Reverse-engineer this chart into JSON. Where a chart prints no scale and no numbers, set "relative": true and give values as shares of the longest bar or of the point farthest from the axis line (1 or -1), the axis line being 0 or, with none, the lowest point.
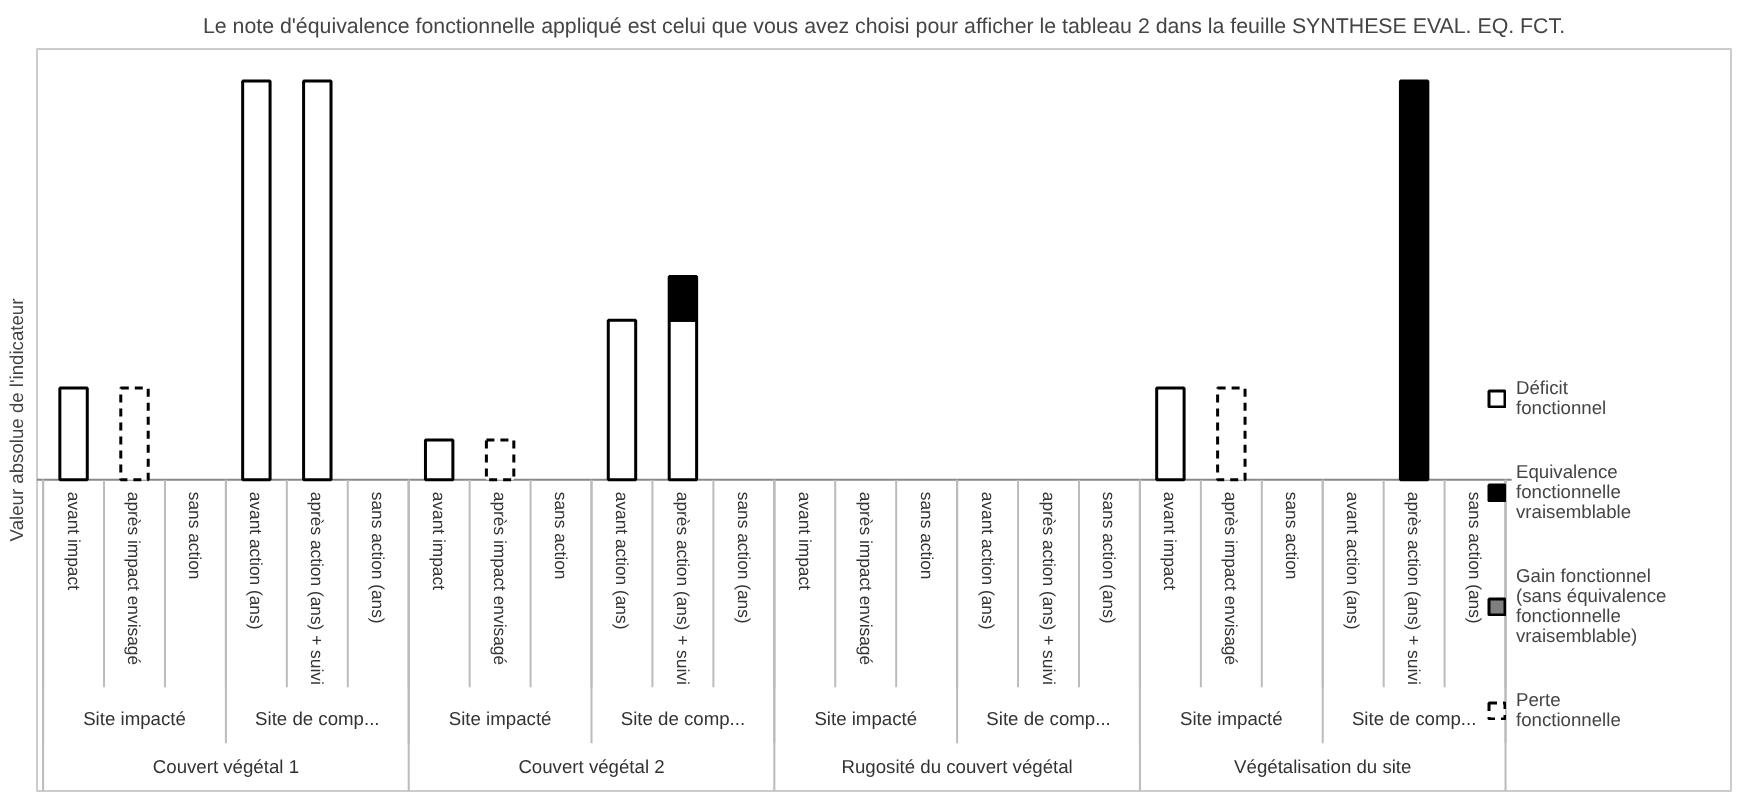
{
  "chart_data": {
    "type": "bar",
    "title": "Le note d'équivalence fonctionnelle appliqué est celui que vous avez choisi pour afficher le tableau 2 dans la feuille SYNTHESE EVAL. EQ. FCT.",
    "ylabel": "Valeur absolue de l'indicateur",
    "relative": true,
    "stacked": true,
    "legend": "right",
    "grid": false,
    "categories": [
      "avant impact",
      "après impact envisagé",
      "sans action",
      "avant action (ans)",
      "après action (ans) + suivi",
      "sans action (ans)",
      "avant impact",
      "après impact envisagé",
      "sans action",
      "avant action (ans)",
      "après action (ans) + suivi",
      "sans action (ans)",
      "avant impact",
      "après impact envisagé",
      "sans action",
      "avant action (ans)",
      "après action (ans) + suivi",
      "sans action (ans)",
      "avant impact",
      "après impact envisagé",
      "sans action",
      "avant action (ans)",
      "après action (ans) + suivi",
      "sans action (ans)"
    ],
    "annotations": [
      "Couvert végétal 1",
      "Couvert végétal 2",
      "Rugosité du couvert végétal",
      "Végétalisation du site",
      "Site impacté",
      "Site de comp...",
      "Site impacté",
      "Site de comp...",
      "Site impacté",
      "Site de comp...",
      "Site impacté",
      "Site de comp..."
    ],
    "series": [
      {
        "name": "Déficit fonctionnel",
        "color": "#ffffff",
        "values": [
          0.23,
          null,
          null,
          1.0,
          1.0,
          null,
          0.1,
          null,
          null,
          0.4,
          0.4,
          null,
          null,
          null,
          null,
          null,
          null,
          null,
          0.23,
          null,
          null,
          null,
          null,
          null
        ]
      },
      {
        "name": "Equivalence fonctionnelle vraisemblable",
        "color": "#000000",
        "values": [
          null,
          null,
          null,
          null,
          null,
          null,
          null,
          null,
          null,
          null,
          0.11,
          null,
          null,
          null,
          null,
          null,
          null,
          null,
          null,
          null,
          null,
          null,
          1.0,
          null
        ]
      },
      {
        "name": "Gain fonctionnel (sans équivalence fonctionnelle vraisemblable)",
        "color": "#7f7f7f",
        "values": [
          null,
          null,
          null,
          null,
          null,
          null,
          null,
          null,
          null,
          null,
          null,
          null,
          null,
          null,
          null,
          null,
          null,
          null,
          null,
          null,
          null,
          null,
          null,
          null
        ]
      },
      {
        "name": "Perte fonctionnelle",
        "color": "#ffffff",
        "line_style": "dashed",
        "values": [
          null,
          0.23,
          null,
          null,
          null,
          null,
          null,
          0.1,
          null,
          null,
          null,
          null,
          null,
          null,
          null,
          null,
          null,
          null,
          null,
          0.23,
          null,
          null,
          null,
          null
        ]
      }
    ]
  }
}
